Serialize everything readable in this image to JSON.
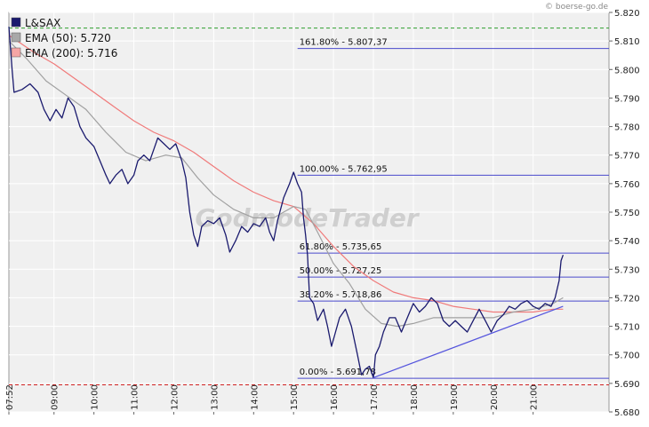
{
  "source": "© boerse-go.de",
  "watermark": "GodmodeTrader",
  "legend": [
    {
      "label": "L&SAX",
      "color": "#1a1a6e"
    },
    {
      "label": "EMA (50): 5.720",
      "color": "#9a9a9a"
    },
    {
      "label": "EMA (200): 5.716",
      "color": "#f07a7a"
    }
  ],
  "chart_data": {
    "type": "line",
    "ylim": [
      5.68,
      5.82
    ],
    "y_ticks": [
      5.82,
      5.81,
      5.8,
      5.79,
      5.78,
      5.77,
      5.76,
      5.75,
      5.74,
      5.73,
      5.72,
      5.71,
      5.7,
      5.69,
      5.68
    ],
    "y_tick_labels": [
      "5.820",
      "5.810",
      "5.800",
      "5.790",
      "5.780",
      "5.770",
      "5.760",
      "5.750",
      "5.740",
      "5.730",
      "5.720",
      "5.710",
      "5.700",
      "5.690",
      "5.680"
    ],
    "x_range": [
      7.87,
      22.9
    ],
    "x_ticks": [
      {
        "x": 7.87,
        "label": "07:52"
      },
      {
        "x": 9,
        "label": "09:00"
      },
      {
        "x": 10,
        "label": "10:00"
      },
      {
        "x": 11,
        "label": "11:00"
      },
      {
        "x": 12,
        "label": "12:00"
      },
      {
        "x": 13,
        "label": "13:00"
      },
      {
        "x": 14,
        "label": "14:00"
      },
      {
        "x": 15,
        "label": "15:00"
      },
      {
        "x": 16,
        "label": "16:00"
      },
      {
        "x": 17,
        "label": "17:00"
      },
      {
        "x": 18,
        "label": "18:00"
      },
      {
        "x": 19,
        "label": "19:00"
      },
      {
        "x": 20,
        "label": "20:00"
      },
      {
        "x": 21,
        "label": "21:00"
      }
    ],
    "series": [
      {
        "name": "L&SAX",
        "color": "#1a1a6e",
        "points": [
          [
            7.87,
            5.815
          ],
          [
            7.95,
            5.8
          ],
          [
            8.0,
            5.792
          ],
          [
            8.2,
            5.793
          ],
          [
            8.4,
            5.795
          ],
          [
            8.6,
            5.792
          ],
          [
            8.75,
            5.786
          ],
          [
            8.9,
            5.782
          ],
          [
            9.05,
            5.786
          ],
          [
            9.2,
            5.783
          ],
          [
            9.35,
            5.79
          ],
          [
            9.5,
            5.787
          ],
          [
            9.65,
            5.78
          ],
          [
            9.8,
            5.776
          ],
          [
            10.0,
            5.773
          ],
          [
            10.15,
            5.768
          ],
          [
            10.3,
            5.763
          ],
          [
            10.4,
            5.76
          ],
          [
            10.55,
            5.763
          ],
          [
            10.7,
            5.765
          ],
          [
            10.85,
            5.76
          ],
          [
            11.0,
            5.763
          ],
          [
            11.1,
            5.768
          ],
          [
            11.25,
            5.77
          ],
          [
            11.4,
            5.768
          ],
          [
            11.5,
            5.772
          ],
          [
            11.6,
            5.776
          ],
          [
            11.75,
            5.774
          ],
          [
            11.9,
            5.772
          ],
          [
            12.05,
            5.774
          ],
          [
            12.2,
            5.768
          ],
          [
            12.3,
            5.762
          ],
          [
            12.4,
            5.75
          ],
          [
            12.5,
            5.742
          ],
          [
            12.6,
            5.738
          ],
          [
            12.7,
            5.745
          ],
          [
            12.85,
            5.747
          ],
          [
            13.0,
            5.746
          ],
          [
            13.15,
            5.748
          ],
          [
            13.3,
            5.742
          ],
          [
            13.4,
            5.736
          ],
          [
            13.55,
            5.74
          ],
          [
            13.7,
            5.745
          ],
          [
            13.85,
            5.743
          ],
          [
            14.0,
            5.746
          ],
          [
            14.15,
            5.745
          ],
          [
            14.3,
            5.748
          ],
          [
            14.4,
            5.743
          ],
          [
            14.5,
            5.74
          ],
          [
            14.6,
            5.747
          ],
          [
            14.75,
            5.755
          ],
          [
            14.9,
            5.76
          ],
          [
            15.0,
            5.764
          ],
          [
            15.1,
            5.76
          ],
          [
            15.2,
            5.757
          ],
          [
            15.25,
            5.748
          ],
          [
            15.3,
            5.742
          ],
          [
            15.35,
            5.735
          ],
          [
            15.4,
            5.72
          ],
          [
            15.5,
            5.718
          ],
          [
            15.6,
            5.712
          ],
          [
            15.75,
            5.716
          ],
          [
            15.85,
            5.71
          ],
          [
            15.95,
            5.703
          ],
          [
            16.05,
            5.708
          ],
          [
            16.15,
            5.713
          ],
          [
            16.3,
            5.716
          ],
          [
            16.45,
            5.71
          ],
          [
            16.6,
            5.7
          ],
          [
            16.7,
            5.693
          ],
          [
            16.8,
            5.695
          ],
          [
            16.9,
            5.696
          ],
          [
            17.0,
            5.692
          ],
          [
            17.05,
            5.7
          ],
          [
            17.15,
            5.703
          ],
          [
            17.25,
            5.708
          ],
          [
            17.4,
            5.713
          ],
          [
            17.55,
            5.713
          ],
          [
            17.7,
            5.708
          ],
          [
            17.85,
            5.713
          ],
          [
            18.0,
            5.718
          ],
          [
            18.15,
            5.715
          ],
          [
            18.3,
            5.717
          ],
          [
            18.45,
            5.72
          ],
          [
            18.6,
            5.718
          ],
          [
            18.75,
            5.712
          ],
          [
            18.9,
            5.71
          ],
          [
            19.05,
            5.712
          ],
          [
            19.2,
            5.71
          ],
          [
            19.35,
            5.708
          ],
          [
            19.5,
            5.712
          ],
          [
            19.65,
            5.716
          ],
          [
            19.8,
            5.712
          ],
          [
            19.95,
            5.708
          ],
          [
            20.1,
            5.712
          ],
          [
            20.25,
            5.714
          ],
          [
            20.4,
            5.717
          ],
          [
            20.55,
            5.716
          ],
          [
            20.7,
            5.718
          ],
          [
            20.85,
            5.719
          ],
          [
            21.0,
            5.717
          ],
          [
            21.15,
            5.716
          ],
          [
            21.3,
            5.718
          ],
          [
            21.45,
            5.717
          ],
          [
            21.55,
            5.72
          ],
          [
            21.65,
            5.726
          ],
          [
            21.7,
            5.733
          ],
          [
            21.75,
            5.735
          ]
        ]
      },
      {
        "name": "EMA (50)",
        "color": "#a0a0a0",
        "points": [
          [
            7.87,
            5.81
          ],
          [
            8.3,
            5.804
          ],
          [
            8.8,
            5.796
          ],
          [
            9.3,
            5.791
          ],
          [
            9.8,
            5.786
          ],
          [
            10.3,
            5.778
          ],
          [
            10.8,
            5.771
          ],
          [
            11.3,
            5.768
          ],
          [
            11.8,
            5.77
          ],
          [
            12.2,
            5.769
          ],
          [
            12.6,
            5.762
          ],
          [
            13.0,
            5.756
          ],
          [
            13.5,
            5.751
          ],
          [
            14.0,
            5.748
          ],
          [
            14.5,
            5.748
          ],
          [
            15.0,
            5.752
          ],
          [
            15.3,
            5.751
          ],
          [
            15.6,
            5.743
          ],
          [
            16.0,
            5.732
          ],
          [
            16.4,
            5.725
          ],
          [
            16.8,
            5.716
          ],
          [
            17.2,
            5.711
          ],
          [
            17.6,
            5.71
          ],
          [
            18.0,
            5.711
          ],
          [
            18.5,
            5.713
          ],
          [
            19.0,
            5.713
          ],
          [
            19.5,
            5.713
          ],
          [
            20.0,
            5.713
          ],
          [
            20.5,
            5.715
          ],
          [
            21.0,
            5.716
          ],
          [
            21.5,
            5.718
          ],
          [
            21.75,
            5.72
          ]
        ]
      },
      {
        "name": "EMA (200)",
        "color": "#f07a7a",
        "points": [
          [
            7.87,
            5.812
          ],
          [
            8.5,
            5.806
          ],
          [
            9.0,
            5.802
          ],
          [
            9.5,
            5.797
          ],
          [
            10.0,
            5.792
          ],
          [
            10.5,
            5.787
          ],
          [
            11.0,
            5.782
          ],
          [
            11.5,
            5.778
          ],
          [
            12.0,
            5.775
          ],
          [
            12.5,
            5.771
          ],
          [
            13.0,
            5.766
          ],
          [
            13.5,
            5.761
          ],
          [
            14.0,
            5.757
          ],
          [
            14.5,
            5.754
          ],
          [
            15.0,
            5.752
          ],
          [
            15.5,
            5.746
          ],
          [
            16.0,
            5.738
          ],
          [
            16.5,
            5.731
          ],
          [
            17.0,
            5.726
          ],
          [
            17.5,
            5.722
          ],
          [
            18.0,
            5.72
          ],
          [
            18.5,
            5.719
          ],
          [
            19.0,
            5.717
          ],
          [
            19.5,
            5.716
          ],
          [
            20.0,
            5.715
          ],
          [
            20.5,
            5.715
          ],
          [
            21.0,
            5.715
          ],
          [
            21.5,
            5.716
          ],
          [
            21.75,
            5.716
          ]
        ]
      }
    ],
    "fib_levels": [
      {
        "label": "161.80% - 5.807,37",
        "value": 5.80737
      },
      {
        "label": "100.00% - 5.762,95",
        "value": 5.76295
      },
      {
        "label": "61.80% - 5.735,65",
        "value": 5.73565
      },
      {
        "label": "50.00% - 5.727,25",
        "value": 5.72725
      },
      {
        "label": "38.20% - 5.718,86",
        "value": 5.71886
      },
      {
        "label": "0.00% - 5.691,78",
        "value": 5.69178
      }
    ],
    "fib_x_start": 15.1,
    "hlines": [
      {
        "value": 5.8145,
        "color": "#2e9e2e",
        "style": "dashed"
      },
      {
        "value": 5.6895,
        "color": "#d02020",
        "style": "dashed"
      }
    ],
    "trendline": {
      "from": [
        17.0,
        5.692
      ],
      "to": [
        21.75,
        5.717
      ],
      "color": "#5555dd"
    }
  }
}
